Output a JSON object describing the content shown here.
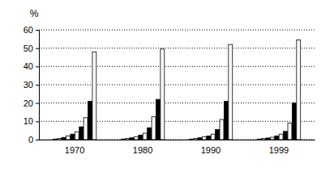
{
  "chart_data": {
    "type": "bar",
    "y_label": "%",
    "categories": [
      "1970",
      "1980",
      "1990",
      "1999"
    ],
    "series": [
      {
        "color": "#000000",
        "values": [
          0.3,
          0.3,
          0.3,
          0.3
        ]
      },
      {
        "color": "#ffffff",
        "values": [
          0.7,
          0.7,
          0.6,
          0.6
        ]
      },
      {
        "color": "#000000",
        "values": [
          1.2,
          1,
          1,
          0.9
        ]
      },
      {
        "color": "#ffffff",
        "values": [
          2,
          1.5,
          1.5,
          1.3
        ]
      },
      {
        "color": "#000000",
        "values": [
          3,
          2.5,
          2,
          2
        ]
      },
      {
        "color": "#ffffff",
        "values": [
          4.3,
          3.5,
          3,
          3
        ]
      },
      {
        "color": "#000000",
        "values": [
          7,
          6.5,
          5.5,
          4.5
        ]
      },
      {
        "color": "#ffffff",
        "values": [
          12,
          12.5,
          11,
          9
        ]
      },
      {
        "color": "#000000",
        "values": [
          21,
          22,
          21,
          20
        ]
      },
      {
        "color": "#ffffff",
        "values": [
          48,
          49.5,
          52,
          54.5
        ]
      }
    ],
    "ylim": [
      0,
      60
    ],
    "yticks": [
      0,
      10,
      20,
      30,
      40,
      50,
      60
    ],
    "grid": true
  }
}
